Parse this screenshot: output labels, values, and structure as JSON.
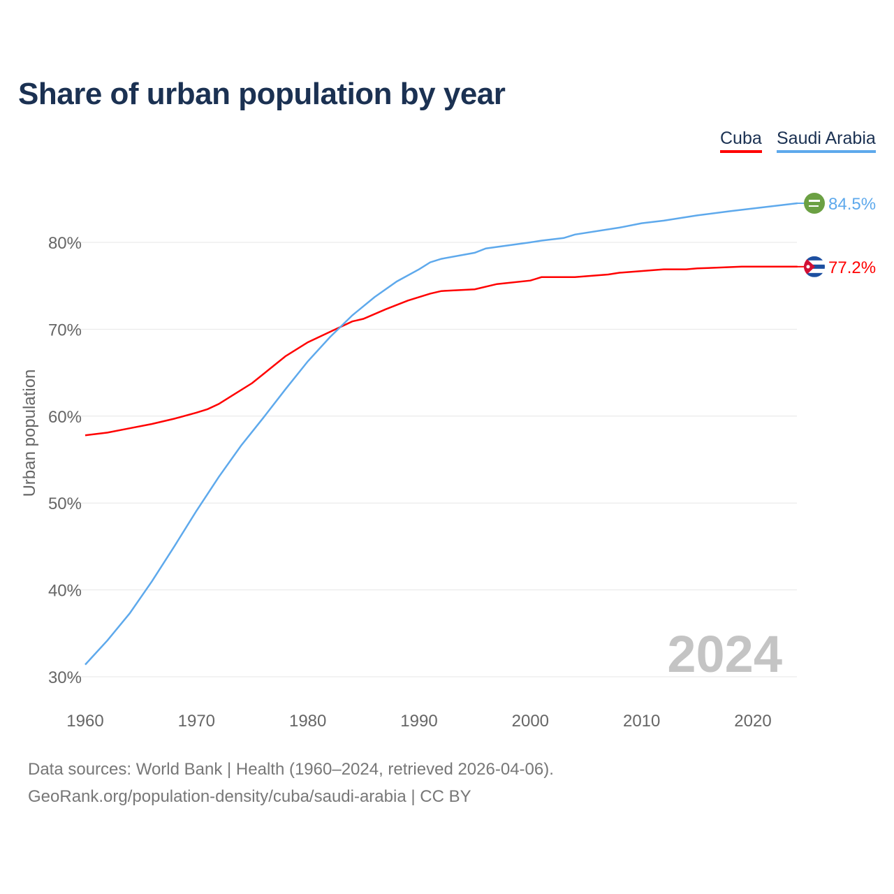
{
  "title": "Share of urban population by year",
  "legend": [
    {
      "name": "Cuba",
      "color": "#ff0000"
    },
    {
      "name": "Saudi Arabia",
      "color": "#5ea9ec"
    }
  ],
  "year_watermark": "2024",
  "sources": [
    "Data sources: World Bank | Health (1960–2024, retrieved 2026-04-06).",
    "GeoRank.org/population-density/cuba/saudi-arabia | CC BY"
  ],
  "chart_data": {
    "type": "line",
    "title": "Share of urban population by year",
    "xlabel": "",
    "ylabel": "Urban population",
    "xlim": [
      1960,
      2024
    ],
    "ylim": [
      30,
      87
    ],
    "xticks": [
      1960,
      1970,
      1980,
      1990,
      2000,
      2010,
      2020
    ],
    "yticks": [
      {
        "v": 30,
        "label": "30%"
      },
      {
        "v": 40,
        "label": "40%"
      },
      {
        "v": 50,
        "label": "50%"
      },
      {
        "v": 60,
        "label": "60%"
      },
      {
        "v": 70,
        "label": "70%"
      },
      {
        "v": 80,
        "label": "80%"
      }
    ],
    "grid": true,
    "legend_position": "top-right",
    "series": [
      {
        "name": "Cuba",
        "color": "#ff0000",
        "end_label": "77.2%",
        "icon": "cuba-flag-icon",
        "points": [
          [
            1960,
            57.8
          ],
          [
            1962,
            58.1
          ],
          [
            1964,
            58.6
          ],
          [
            1966,
            59.1
          ],
          [
            1968,
            59.7
          ],
          [
            1970,
            60.4
          ],
          [
            1971,
            60.8
          ],
          [
            1972,
            61.4
          ],
          [
            1973,
            62.2
          ],
          [
            1975,
            63.8
          ],
          [
            1978,
            66.9
          ],
          [
            1980,
            68.5
          ],
          [
            1982,
            69.7
          ],
          [
            1984,
            70.9
          ],
          [
            1985,
            71.2
          ],
          [
            1987,
            72.3
          ],
          [
            1989,
            73.3
          ],
          [
            1991,
            74.1
          ],
          [
            1992,
            74.4
          ],
          [
            1995,
            74.6
          ],
          [
            1997,
            75.2
          ],
          [
            2000,
            75.6
          ],
          [
            2001,
            76.0
          ],
          [
            2004,
            76.0
          ],
          [
            2007,
            76.3
          ],
          [
            2008,
            76.5
          ],
          [
            2012,
            76.9
          ],
          [
            2014,
            76.9
          ],
          [
            2015,
            77.0
          ],
          [
            2019,
            77.2
          ],
          [
            2023,
            77.2
          ],
          [
            2024,
            77.2
          ]
        ]
      },
      {
        "name": "Saudi Arabia",
        "color": "#5ea9ec",
        "end_label": "84.5%",
        "icon": "saudi-arabia-flag-icon",
        "points": [
          [
            1960,
            31.4
          ],
          [
            1962,
            34.2
          ],
          [
            1964,
            37.3
          ],
          [
            1966,
            41.0
          ],
          [
            1968,
            45.0
          ],
          [
            1970,
            49.1
          ],
          [
            1972,
            53.0
          ],
          [
            1974,
            56.6
          ],
          [
            1976,
            59.8
          ],
          [
            1978,
            63.1
          ],
          [
            1980,
            66.3
          ],
          [
            1982,
            69.1
          ],
          [
            1984,
            71.6
          ],
          [
            1986,
            73.7
          ],
          [
            1988,
            75.5
          ],
          [
            1990,
            76.9
          ],
          [
            1991,
            77.7
          ],
          [
            1992,
            78.1
          ],
          [
            1995,
            78.8
          ],
          [
            1996,
            79.3
          ],
          [
            2000,
            80.0
          ],
          [
            2001,
            80.2
          ],
          [
            2003,
            80.5
          ],
          [
            2004,
            80.9
          ],
          [
            2008,
            81.7
          ],
          [
            2010,
            82.2
          ],
          [
            2012,
            82.5
          ],
          [
            2015,
            83.1
          ],
          [
            2018,
            83.6
          ],
          [
            2020,
            83.9
          ],
          [
            2022,
            84.2
          ],
          [
            2024,
            84.5
          ]
        ]
      }
    ]
  }
}
